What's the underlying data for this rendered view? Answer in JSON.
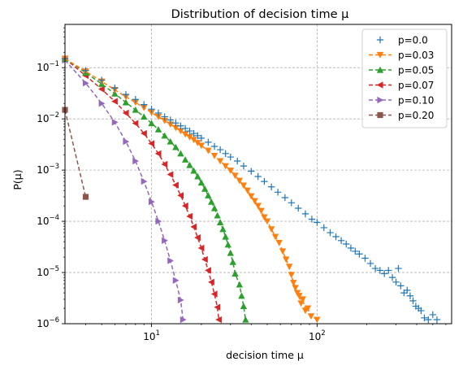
{
  "chart_data": {
    "type": "scatter",
    "title": "Distribution of decision time μ",
    "xlabel": "decision time μ",
    "ylabel": "P(μ)",
    "x_scale": "log",
    "y_scale": "log",
    "xlim": [
      3,
      650
    ],
    "ylim": [
      1e-06,
      0.7
    ],
    "grid": true,
    "legend_position": "top-right",
    "x_ticks": [
      {
        "value": 10,
        "base": "10",
        "exp": "1"
      },
      {
        "value": 100,
        "base": "10",
        "exp": "2"
      }
    ],
    "y_ticks": [
      {
        "value": 1e-06,
        "base": "10",
        "exp": "−6"
      },
      {
        "value": 1e-05,
        "base": "10",
        "exp": "−5"
      },
      {
        "value": 0.0001,
        "base": "10",
        "exp": "−4"
      },
      {
        "value": 0.001,
        "base": "10",
        "exp": "−3"
      },
      {
        "value": 0.01,
        "base": "10",
        "exp": "−2"
      },
      {
        "value": 0.1,
        "base": "10",
        "exp": "−1"
      }
    ],
    "series": [
      {
        "name": "p=0.0",
        "color": "#1f77b4",
        "marker": "plus",
        "line": false,
        "points": [
          [
            3,
            0.15
          ],
          [
            4,
            0.088
          ],
          [
            5,
            0.057
          ],
          [
            6,
            0.04
          ],
          [
            7,
            0.03
          ],
          [
            8,
            0.024
          ],
          [
            9,
            0.019
          ],
          [
            10,
            0.0155
          ],
          [
            11,
            0.013
          ],
          [
            12,
            0.011
          ],
          [
            13,
            0.0095
          ],
          [
            14,
            0.0083
          ],
          [
            15,
            0.0073
          ],
          [
            16,
            0.0065
          ],
          [
            17,
            0.0058
          ],
          [
            18,
            0.0052
          ],
          [
            19,
            0.0047
          ],
          [
            20,
            0.0042
          ],
          [
            22,
            0.0035
          ],
          [
            24,
            0.0029
          ],
          [
            26,
            0.0025
          ],
          [
            28,
            0.0021
          ],
          [
            30,
            0.0018
          ],
          [
            33,
            0.0015
          ],
          [
            36,
            0.0012
          ],
          [
            40,
            0.00095
          ],
          [
            44,
            0.00075
          ],
          [
            48,
            0.0006
          ],
          [
            53,
            0.00047
          ],
          [
            58,
            0.00037
          ],
          [
            64,
            0.00029
          ],
          [
            70,
            0.00023
          ],
          [
            77,
            0.00018
          ],
          [
            85,
            0.00014
          ],
          [
            93,
            0.00011
          ],
          [
            100,
            9.5e-05
          ],
          [
            110,
            7.5e-05
          ],
          [
            120,
            6e-05
          ],
          [
            130,
            5e-05
          ],
          [
            140,
            4.2e-05
          ],
          [
            150,
            3.6e-05
          ],
          [
            160,
            3e-05
          ],
          [
            170,
            2.6e-05
          ],
          [
            180,
            2.3e-05
          ],
          [
            195,
            1.9e-05
          ],
          [
            210,
            1.5e-05
          ],
          [
            225,
            1.2e-05
          ],
          [
            240,
            1.1e-05
          ],
          [
            255,
            9.5e-06
          ],
          [
            270,
            1.1e-05
          ],
          [
            285,
            8e-06
          ],
          [
            300,
            6.5e-06
          ],
          [
            310,
            1.2e-05
          ],
          [
            320,
            5.5e-06
          ],
          [
            335,
            4e-06
          ],
          [
            350,
            4.5e-06
          ],
          [
            365,
            3.5e-06
          ],
          [
            380,
            2.8e-06
          ],
          [
            395,
            2.2e-06
          ],
          [
            410,
            2e-06
          ],
          [
            425,
            1.8e-06
          ],
          [
            445,
            1.3e-06
          ],
          [
            470,
            1.2e-06
          ],
          [
            500,
            1.5e-06
          ],
          [
            530,
            1.2e-06
          ]
        ]
      },
      {
        "name": "p=0.03",
        "color": "#ff7f0e",
        "marker": "triangle-down",
        "line": true,
        "points": [
          [
            3,
            0.15
          ],
          [
            4,
            0.085
          ],
          [
            5,
            0.054
          ],
          [
            6,
            0.037
          ],
          [
            7,
            0.027
          ],
          [
            8,
            0.021
          ],
          [
            9,
            0.0165
          ],
          [
            10,
            0.0133
          ],
          [
            11,
            0.011
          ],
          [
            12,
            0.0092
          ],
          [
            13,
            0.0078
          ],
          [
            14,
            0.0067
          ],
          [
            15,
            0.0058
          ],
          [
            16,
            0.005
          ],
          [
            17,
            0.0044
          ],
          [
            18,
            0.0039
          ],
          [
            19,
            0.0034
          ],
          [
            20,
            0.003
          ],
          [
            22,
            0.0024
          ],
          [
            24,
            0.0019
          ],
          [
            26,
            0.0015
          ],
          [
            28,
            0.0012
          ],
          [
            30,
            0.00098
          ],
          [
            32,
            0.00078
          ],
          [
            34,
            0.00062
          ],
          [
            36,
            0.0005
          ],
          [
            38,
            0.0004
          ],
          [
            40,
            0.00031
          ],
          [
            42,
            0.00025
          ],
          [
            44,
            0.0002
          ],
          [
            46,
            0.00016
          ],
          [
            48,
            0.00012
          ],
          [
            50,
            0.0001
          ],
          [
            53,
            7e-05
          ],
          [
            56,
            5e-05
          ],
          [
            59,
            3.8e-05
          ],
          [
            62,
            2.6e-05
          ],
          [
            65,
            1.8e-05
          ],
          [
            68,
            1.3e-05
          ],
          [
            70,
            9e-06
          ],
          [
            72,
            6.3e-06
          ],
          [
            74,
            5e-06
          ],
          [
            76,
            4e-06
          ],
          [
            78,
            3.5e-06
          ],
          [
            80,
            2.5e-06
          ],
          [
            82,
            3e-06
          ],
          [
            85,
            1.8e-06
          ],
          [
            88,
            2e-06
          ],
          [
            92,
            1.4e-06
          ],
          [
            100,
            1.2e-06
          ]
        ]
      },
      {
        "name": "p=0.05",
        "color": "#2ca02c",
        "marker": "triangle-up",
        "line": true,
        "points": [
          [
            3,
            0.15
          ],
          [
            4,
            0.08
          ],
          [
            5,
            0.048
          ],
          [
            6,
            0.031
          ],
          [
            7,
            0.021
          ],
          [
            8,
            0.015
          ],
          [
            9,
            0.011
          ],
          [
            10,
            0.0082
          ],
          [
            11,
            0.0062
          ],
          [
            12,
            0.0047
          ],
          [
            13,
            0.0036
          ],
          [
            14,
            0.0028
          ],
          [
            15,
            0.0021
          ],
          [
            16,
            0.0016
          ],
          [
            17,
            0.00125
          ],
          [
            18,
            0.00097
          ],
          [
            19,
            0.00075
          ],
          [
            20,
            0.00057
          ],
          [
            21,
            0.00043
          ],
          [
            22,
            0.00032
          ],
          [
            23,
            0.00024
          ],
          [
            24,
            0.00018
          ],
          [
            25,
            0.00013
          ],
          [
            26,
            9.5e-05
          ],
          [
            27,
            7e-05
          ],
          [
            28,
            5e-05
          ],
          [
            29,
            3.5e-05
          ],
          [
            30,
            2.4e-05
          ],
          [
            31,
            1.6e-05
          ],
          [
            32,
            9.5e-06
          ],
          [
            34,
            5.8e-06
          ],
          [
            35,
            3.5e-06
          ],
          [
            36,
            2.2e-06
          ],
          [
            37,
            1.2e-06
          ]
        ]
      },
      {
        "name": "p=0.07",
        "color": "#d62728",
        "marker": "triangle-left",
        "line": true,
        "points": [
          [
            3,
            0.15
          ],
          [
            4,
            0.07
          ],
          [
            5,
            0.038
          ],
          [
            6,
            0.022
          ],
          [
            7,
            0.013
          ],
          [
            8,
            0.0082
          ],
          [
            9,
            0.0052
          ],
          [
            10,
            0.0033
          ],
          [
            11,
            0.0021
          ],
          [
            12,
            0.0013
          ],
          [
            13,
            0.00082
          ],
          [
            14,
            0.00051
          ],
          [
            15,
            0.00032
          ],
          [
            16,
            0.0002
          ],
          [
            17,
            0.000125
          ],
          [
            18,
            7.8e-05
          ],
          [
            19,
            4.8e-05
          ],
          [
            20,
            3e-05
          ],
          [
            21,
            1.8e-05
          ],
          [
            22,
            1.1e-05
          ],
          [
            23,
            6.5e-06
          ],
          [
            24,
            3.8e-06
          ],
          [
            25,
            2.1e-06
          ],
          [
            25.5,
            1.2e-06
          ]
        ]
      },
      {
        "name": "p=0.10",
        "color": "#9467bd",
        "marker": "triangle-right",
        "line": true,
        "points": [
          [
            3,
            0.14
          ],
          [
            4,
            0.05
          ],
          [
            5,
            0.02
          ],
          [
            6,
            0.0086
          ],
          [
            7,
            0.0036
          ],
          [
            8,
            0.0015
          ],
          [
            9,
            0.0006
          ],
          [
            10,
            0.00024
          ],
          [
            11,
            0.0001
          ],
          [
            12,
            4.2e-05
          ],
          [
            13,
            1.7e-05
          ],
          [
            14,
            7e-06
          ],
          [
            15,
            2.9e-06
          ],
          [
            15.5,
            1.2e-06
          ]
        ]
      },
      {
        "name": "p=0.20",
        "color": "#8c564b",
        "marker": "square",
        "line": true,
        "points": [
          [
            3,
            0.015
          ],
          [
            4,
            0.0003
          ]
        ]
      }
    ]
  }
}
